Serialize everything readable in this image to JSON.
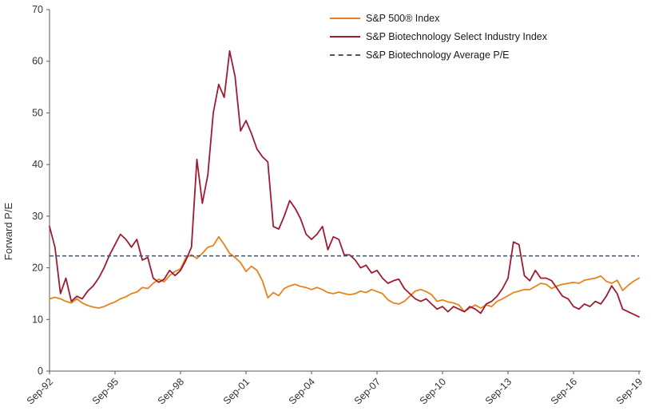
{
  "chart": {
    "ylabel": "Forward P/E",
    "legend": [
      {
        "label": "S&P 500® Index",
        "color": "#E8821C",
        "dash": false
      },
      {
        "label": "S&P Biotechnology Select Industry Index",
        "color": "#9E1B32",
        "dash": false
      },
      {
        "label": "S&P Biotechnology Average P/E",
        "color": "#44546A",
        "dash": true
      }
    ]
  },
  "chart_data": {
    "type": "line",
    "title": "",
    "xlabel": "",
    "ylabel": "Forward P/E",
    "ylim": [
      0,
      70
    ],
    "yticks": [
      0,
      10,
      20,
      30,
      40,
      50,
      60,
      70
    ],
    "grid": false,
    "legend_position": "top-center",
    "x_unit": "quarterly from Sep-92 to Sep-19",
    "x_ticks": [
      {
        "i": 0,
        "label": "Sep-92"
      },
      {
        "i": 12,
        "label": "Sep-95"
      },
      {
        "i": 24,
        "label": "Sep-98"
      },
      {
        "i": 36,
        "label": "Sep-01"
      },
      {
        "i": 48,
        "label": "Sep-04"
      },
      {
        "i": 60,
        "label": "Sep-07"
      },
      {
        "i": 72,
        "label": "Sep-10"
      },
      {
        "i": 84,
        "label": "Sep-13"
      },
      {
        "i": 96,
        "label": "Sep-16"
      },
      {
        "i": 108,
        "label": "Sep-19"
      }
    ],
    "series": [
      {
        "name": "S&P 500® Index",
        "color": "#E8821C",
        "dashed": false,
        "values": [
          14.0,
          14.3,
          14.0,
          13.5,
          13.2,
          14.0,
          13.2,
          12.7,
          12.4,
          12.2,
          12.5,
          13.0,
          13.4,
          14.0,
          14.4,
          15.0,
          15.3,
          16.2,
          16.0,
          17.0,
          17.8,
          17.3,
          18.5,
          19.3,
          19.8,
          22.0,
          22.5,
          21.8,
          22.8,
          24.0,
          24.3,
          26.0,
          24.5,
          22.8,
          22.0,
          21.0,
          19.3,
          20.3,
          19.5,
          17.5,
          14.2,
          15.2,
          14.6,
          16.0,
          16.5,
          16.8,
          16.4,
          16.2,
          15.8,
          16.2,
          15.8,
          15.2,
          15.0,
          15.3,
          15.0,
          14.8,
          15.0,
          15.5,
          15.2,
          15.8,
          15.4,
          15.0,
          13.8,
          13.2,
          13.0,
          13.5,
          14.5,
          15.5,
          15.8,
          15.4,
          14.8,
          13.5,
          13.8,
          13.4,
          13.2,
          12.8,
          11.5,
          12.2,
          12.8,
          12.2,
          12.8,
          12.5,
          13.5,
          14.0,
          14.6,
          15.2,
          15.5,
          15.8,
          15.8,
          16.4,
          17.0,
          16.8,
          16.0,
          16.5,
          16.8,
          17.0,
          17.2,
          17.0,
          17.6,
          17.8,
          18.0,
          18.4,
          17.4,
          17.0,
          17.6,
          15.6,
          16.6,
          17.4,
          18.0
        ]
      },
      {
        "name": "S&P Biotechnology Select Industry Index",
        "color": "#9E1B32",
        "dashed": false,
        "values": [
          28.0,
          24.0,
          15.0,
          18.0,
          13.5,
          14.5,
          14.0,
          15.5,
          16.5,
          18.0,
          20.0,
          22.5,
          24.5,
          26.5,
          25.5,
          24.0,
          25.5,
          21.5,
          22.0,
          18.0,
          17.2,
          17.8,
          19.5,
          18.5,
          19.5,
          21.5,
          24.0,
          41.0,
          32.5,
          38.0,
          50.0,
          55.5,
          53.0,
          62.0,
          57.0,
          46.5,
          48.5,
          46.0,
          43.0,
          41.5,
          40.5,
          28.0,
          27.5,
          30.0,
          33.0,
          31.5,
          29.5,
          26.5,
          25.5,
          26.5,
          28.0,
          23.5,
          26.0,
          25.5,
          22.5,
          22.5,
          21.5,
          20.0,
          20.5,
          19.0,
          19.5,
          18.0,
          17.0,
          17.5,
          17.8,
          16.0,
          15.0,
          14.0,
          13.5,
          14.0,
          13.0,
          12.0,
          12.5,
          11.5,
          12.5,
          12.0,
          11.5,
          12.5,
          12.0,
          11.2,
          13.0,
          13.5,
          14.5,
          16.0,
          18.0,
          25.0,
          24.5,
          18.5,
          17.5,
          19.5,
          18.0,
          18.0,
          17.5,
          16.0,
          14.5,
          14.0,
          12.5,
          12.0,
          13.0,
          12.5,
          13.5,
          13.0,
          14.5,
          16.5,
          15.0,
          12.0,
          11.5,
          11.0,
          10.5
        ]
      },
      {
        "name": "S&P Biotechnology Average P/E",
        "color": "#44546A",
        "dashed": true,
        "constant": 22.3
      }
    ]
  }
}
